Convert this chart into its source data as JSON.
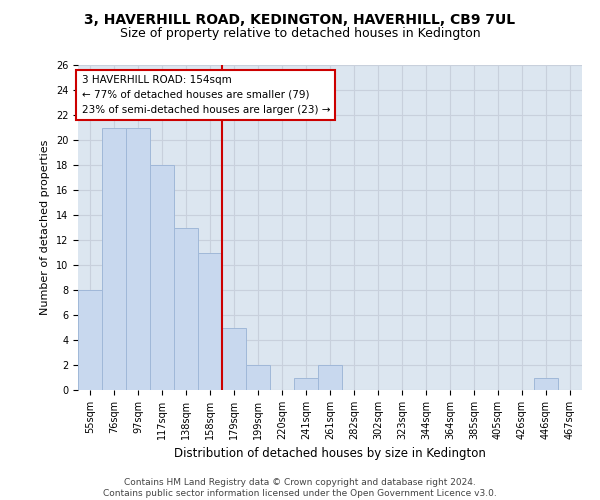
{
  "title": "3, HAVERHILL ROAD, KEDINGTON, HAVERHILL, CB9 7UL",
  "subtitle": "Size of property relative to detached houses in Kedington",
  "xlabel": "Distribution of detached houses by size in Kedington",
  "ylabel": "Number of detached properties",
  "categories": [
    "55sqm",
    "76sqm",
    "97sqm",
    "117sqm",
    "138sqm",
    "158sqm",
    "179sqm",
    "199sqm",
    "220sqm",
    "241sqm",
    "261sqm",
    "282sqm",
    "302sqm",
    "323sqm",
    "344sqm",
    "364sqm",
    "385sqm",
    "405sqm",
    "426sqm",
    "446sqm",
    "467sqm"
  ],
  "values": [
    8,
    21,
    21,
    18,
    13,
    11,
    5,
    2,
    0,
    1,
    2,
    0,
    0,
    0,
    0,
    0,
    0,
    0,
    0,
    1,
    0
  ],
  "bar_color": "#c8d8ee",
  "bar_edgecolor": "#a0b8d8",
  "grid_color": "#c8d0dc",
  "background_color": "#dce6f0",
  "vline_x": 5.5,
  "vline_color": "#cc0000",
  "annotation_line1": "3 HAVERHILL ROAD: 154sqm",
  "annotation_line2": "← 77% of detached houses are smaller (79)",
  "annotation_line3": "23% of semi-detached houses are larger (23) →",
  "annotation_box_color": "#cc0000",
  "ylim": [
    0,
    26
  ],
  "yticks": [
    0,
    2,
    4,
    6,
    8,
    10,
    12,
    14,
    16,
    18,
    20,
    22,
    24,
    26
  ],
  "footnote": "Contains HM Land Registry data © Crown copyright and database right 2024.\nContains public sector information licensed under the Open Government Licence v3.0.",
  "title_fontsize": 10,
  "subtitle_fontsize": 9,
  "annotation_fontsize": 7.5,
  "tick_fontsize": 7,
  "ylabel_fontsize": 8,
  "xlabel_fontsize": 8.5,
  "footnote_fontsize": 6.5
}
